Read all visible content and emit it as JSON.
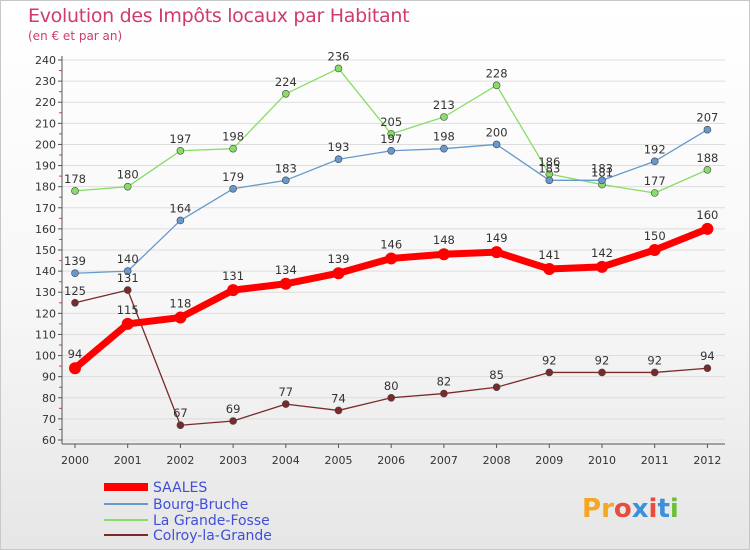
{
  "brand": "Proxiti",
  "colors": {
    "title": "#d13a6f",
    "grid": "#dddddd",
    "saales": "#ff0000",
    "bourg": "#6699cc",
    "grande": "#88dd66",
    "colroy": "#7a2a2a",
    "legend_text": "#3f4fd8"
  },
  "chart_data": {
    "type": "line",
    "title": "Evolution des Impôts locaux par Habitant",
    "subtitle": "(en € et par an)",
    "xlabel": "",
    "ylabel": "",
    "x": [
      "2000",
      "2001",
      "2002",
      "2003",
      "2004",
      "2005",
      "2006",
      "2007",
      "2008",
      "2009",
      "2010",
      "2011",
      "2012"
    ],
    "ylim": [
      60,
      240
    ],
    "yticks": [
      60,
      70,
      80,
      90,
      100,
      110,
      120,
      130,
      140,
      150,
      160,
      170,
      180,
      190,
      200,
      210,
      220,
      230,
      240
    ],
    "grid": true,
    "legend_position": "bottom-left",
    "series": [
      {
        "name": "SAALES",
        "values": [
          94,
          115,
          118,
          131,
          134,
          139,
          146,
          148,
          149,
          141,
          142,
          150,
          160
        ]
      },
      {
        "name": "Bourg-Bruche",
        "values": [
          139,
          140,
          164,
          179,
          183,
          193,
          197,
          198,
          200,
          183,
          183,
          192,
          207
        ]
      },
      {
        "name": "La Grande-Fosse",
        "values": [
          178,
          180,
          197,
          198,
          224,
          236,
          205,
          213,
          228,
          186,
          181,
          177,
          188
        ]
      },
      {
        "name": "Colroy-la-Grande",
        "values": [
          125,
          131,
          67,
          69,
          77,
          74,
          80,
          82,
          85,
          92,
          92,
          92,
          94
        ]
      }
    ]
  }
}
